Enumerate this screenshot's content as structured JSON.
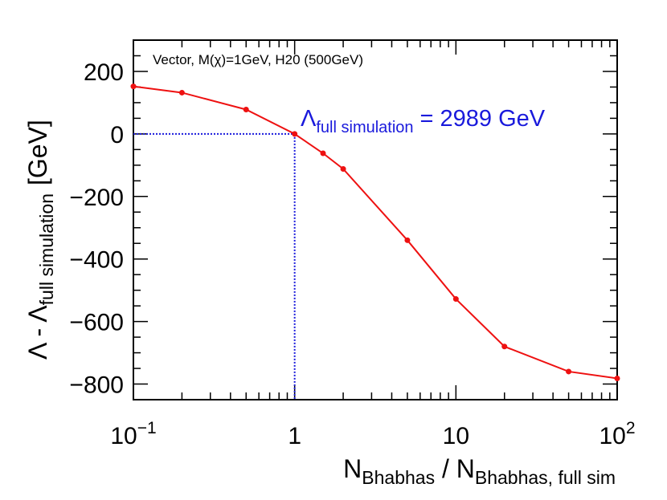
{
  "chart_data": {
    "type": "line",
    "title": "",
    "annotation": "Vector, M(χ)=1GeV, H20 (500GeV)",
    "result_label": {
      "symbol": "Λ",
      "subscript": "full simulation",
      "value_text": "= 2989 GeV"
    },
    "xlabel": {
      "main": "N",
      "sub1": "Bhabhas",
      "sep": " / N",
      "sub2": "Bhabhas, full sim"
    },
    "ylabel": {
      "prefix": "Λ - Λ",
      "sub": "full simulation",
      "suffix": "[GeV]"
    },
    "x_scale": "log",
    "xlim": [
      0.1,
      100
    ],
    "ylim": [
      -850,
      300
    ],
    "x_ticks": [
      {
        "value": 0.1,
        "base": "10",
        "exp": "−1"
      },
      {
        "value": 1,
        "base": "1",
        "exp": ""
      },
      {
        "value": 10,
        "base": "10",
        "exp": ""
      },
      {
        "value": 100,
        "base": "10",
        "exp": "2"
      }
    ],
    "y_ticks": [
      {
        "value": 200,
        "label": "200"
      },
      {
        "value": 0,
        "label": "0"
      },
      {
        "value": -200,
        "label": "−200"
      },
      {
        "value": -400,
        "label": "−400"
      },
      {
        "value": -600,
        "label": "−600"
      },
      {
        "value": -800,
        "label": "−800"
      }
    ],
    "series": [
      {
        "name": "Λ - Λ full simulation",
        "color": "#ee1111",
        "x": [
          0.1,
          0.2,
          0.5,
          1,
          1.5,
          2,
          5,
          10,
          20,
          50,
          100
        ],
        "y": [
          152,
          132,
          78,
          0,
          -62,
          -112,
          -340,
          -528,
          -680,
          -760,
          -782
        ]
      }
    ],
    "reference": {
      "x": 1,
      "y": 0,
      "color": "#1a1adc"
    }
  }
}
